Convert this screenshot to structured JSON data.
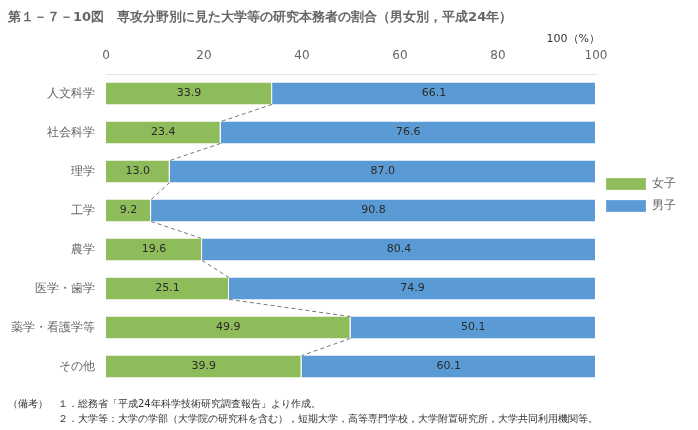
{
  "chart_data": {
    "type": "bar",
    "orientation": "horizontal",
    "stacked": true,
    "title": "第１－７－10図　専攻分野別に見た大学等の研究本務者の割合（男女別，平成24年）",
    "categories": [
      "人文科学",
      "社会科学",
      "理学",
      "工学",
      "農学",
      "医学・歯学",
      "薬学・看護学等",
      "その他"
    ],
    "series": [
      {
        "name": "女子",
        "color": "#8fbc5a",
        "values": [
          33.9,
          23.4,
          13.0,
          9.2,
          19.6,
          25.1,
          49.9,
          39.9
        ],
        "value_labels": [
          "33.9",
          "23.4",
          "13.0",
          "9.2",
          "19.6",
          "25.1",
          "49.9",
          "39.9"
        ]
      },
      {
        "name": "男子",
        "color": "#5b9bd5",
        "values": [
          66.1,
          76.6,
          87.0,
          90.8,
          80.4,
          74.9,
          50.1,
          60.1
        ],
        "value_labels": [
          "66.1",
          "76.6",
          "87.0",
          "90.8",
          "80.4",
          "74.9",
          "50.1",
          "60.1"
        ]
      }
    ],
    "xlim": [
      0,
      100
    ],
    "xticks": [
      0,
      20,
      40,
      60,
      80,
      100
    ],
    "grid": false,
    "legend": "right",
    "data_labels": true,
    "annotations": [
      "100（%）",
      "（備考）　１．総務省「平成24年科学技術研究調査報告」より作成。",
      "　　　　　２．大学等：大学の学部（大学院の研究科を含む），短期大学，高等専門学校，大学附置研究所，大学共同利用機関等。"
    ]
  }
}
